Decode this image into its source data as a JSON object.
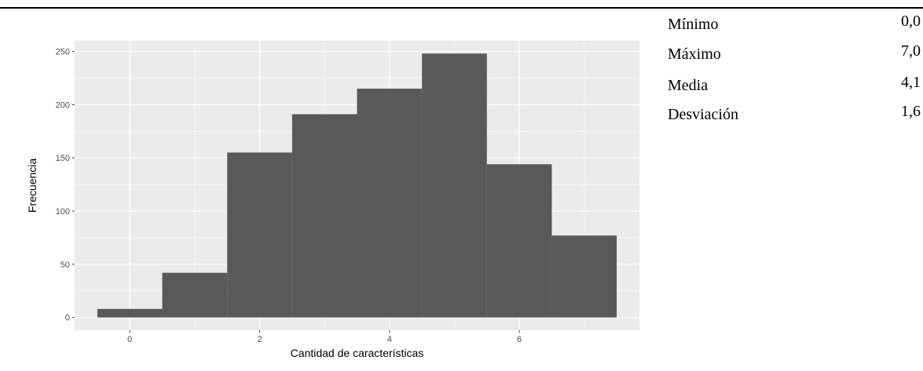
{
  "chart_data": {
    "type": "bar",
    "title": "",
    "xlabel": "Cantidad de características",
    "ylabel": "Frecuencia",
    "x": [
      0,
      1,
      2,
      3,
      4,
      5,
      6,
      7
    ],
    "values": [
      8,
      42,
      155,
      191,
      215,
      248,
      144,
      77
    ],
    "bin_width": 1,
    "xlim": [
      -0.85,
      7.85
    ],
    "ylim": [
      -12,
      260
    ],
    "x_ticks": [
      0,
      2,
      4,
      6
    ],
    "y_ticks": [
      0,
      50,
      100,
      150,
      200,
      250
    ],
    "grid": true,
    "legend": "none",
    "colors": {
      "panel": "#ebebeb",
      "bar": "#595959",
      "grid": "#ffffff",
      "tick_text": "#4d4d4d"
    }
  },
  "stats": [
    {
      "label": "Mínimo",
      "value": "0,0"
    },
    {
      "label": "Máximo",
      "value": "7,0"
    },
    {
      "label": "Media",
      "value": "4,1"
    },
    {
      "label": "Desviación",
      "value": "1,6"
    }
  ]
}
